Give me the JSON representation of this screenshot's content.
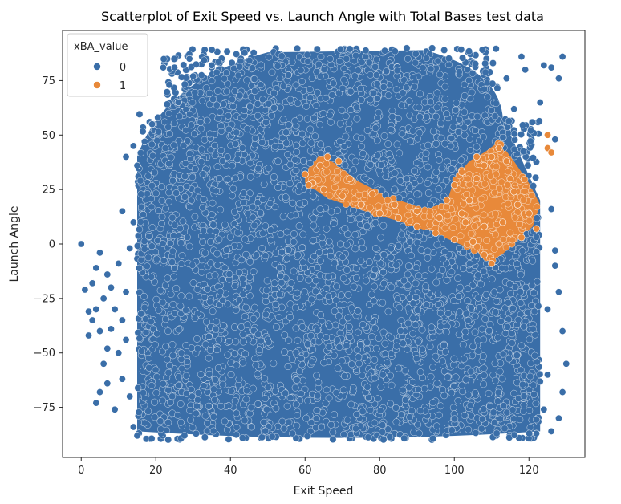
{
  "chart_data": {
    "type": "scatter",
    "title": "Scatterplot of Exit Speed vs. Launch Angle with Total Bases test data",
    "xlabel": "Exit Speed",
    "ylabel": "Launch Angle",
    "xlim": [
      -5,
      135
    ],
    "ylim": [
      -98,
      98
    ],
    "xticks": [
      0,
      20,
      40,
      60,
      80,
      100,
      120
    ],
    "yticks": [
      -75,
      -50,
      -25,
      0,
      25,
      50,
      75
    ],
    "grid": false,
    "legend": {
      "title": "xBA_value",
      "placement": "top-left",
      "entries": [
        {
          "label": "0",
          "color": "#3a6ea8"
        },
        {
          "label": "1",
          "color": "#e8893a"
        }
      ]
    },
    "series": [
      {
        "name": "0",
        "color": "#3a6ea8",
        "points": [
          [
            0,
            0
          ],
          [
            1,
            -21
          ],
          [
            2,
            -42
          ],
          [
            2,
            -31
          ],
          [
            3,
            -35
          ],
          [
            3,
            -18
          ],
          [
            4,
            -30
          ],
          [
            4,
            -11
          ],
          [
            4,
            -73
          ],
          [
            5,
            -40
          ],
          [
            5,
            -68
          ],
          [
            5,
            -4
          ],
          [
            6,
            -25
          ],
          [
            6,
            -55
          ],
          [
            7,
            -48
          ],
          [
            7,
            -64
          ],
          [
            7,
            -14
          ],
          [
            8,
            -39
          ],
          [
            8,
            -20
          ],
          [
            9,
            -76
          ],
          [
            9,
            -30
          ],
          [
            10,
            -50
          ],
          [
            10,
            -9
          ],
          [
            11,
            -62
          ],
          [
            11,
            -35
          ],
          [
            11,
            15
          ],
          [
            12,
            40
          ],
          [
            12,
            -44
          ],
          [
            12,
            -22
          ],
          [
            13,
            -70
          ],
          [
            13,
            -2
          ],
          [
            14,
            -84
          ],
          [
            15,
            -88
          ],
          [
            14,
            10
          ],
          [
            14,
            45
          ],
          [
            15,
            36
          ],
          [
            17,
            47
          ],
          [
            19,
            55
          ],
          [
            22,
            81
          ],
          [
            25,
            81
          ],
          [
            26,
            65
          ],
          [
            29,
            85
          ],
          [
            30,
            77
          ],
          [
            35,
            82
          ],
          [
            123,
            65
          ],
          [
            124,
            82
          ],
          [
            126,
            81
          ],
          [
            127,
            48
          ],
          [
            128,
            76
          ],
          [
            129,
            86
          ],
          [
            126,
            16
          ],
          [
            127,
            -3
          ],
          [
            128,
            -22
          ],
          [
            129,
            -40
          ],
          [
            130,
            -55
          ],
          [
            129,
            -68
          ],
          [
            128,
            -80
          ],
          [
            126,
            -86
          ],
          [
            124,
            -76
          ],
          [
            122,
            -87
          ],
          [
            125,
            -60
          ],
          [
            125,
            -30
          ],
          [
            127,
            -10
          ],
          [
            118,
            86
          ],
          [
            119,
            80
          ],
          [
            116,
            62
          ],
          [
            114,
            76
          ]
        ],
        "regions": [
          {
            "x_range": [
              15,
              123
            ],
            "y_range": [
              -90,
              90
            ],
            "note": "dense main cluster"
          }
        ]
      },
      {
        "name": "1",
        "color": "#e8893a",
        "points": [
          [
            125,
            50
          ],
          [
            125,
            44
          ],
          [
            126,
            42
          ],
          [
            122,
            7
          ],
          [
            120,
            14
          ],
          [
            118,
            3
          ],
          [
            112,
            0
          ],
          [
            110,
            -9
          ],
          [
            108,
            -5
          ],
          [
            105,
            1
          ],
          [
            100,
            2
          ],
          [
            95,
            5
          ],
          [
            90,
            8
          ],
          [
            85,
            12
          ],
          [
            80,
            14
          ],
          [
            75,
            18
          ],
          [
            70,
            22
          ],
          [
            65,
            25
          ],
          [
            62,
            28
          ],
          [
            60,
            32
          ],
          [
            61,
            27
          ],
          [
            64,
            36
          ],
          [
            66,
            40
          ],
          [
            69,
            38
          ],
          [
            72,
            30
          ],
          [
            78,
            23
          ],
          [
            84,
            18
          ],
          [
            90,
            15
          ],
          [
            96,
            12
          ],
          [
            102,
            14
          ],
          [
            104,
            20
          ],
          [
            106,
            30
          ],
          [
            108,
            36
          ],
          [
            110,
            40
          ],
          [
            112,
            44
          ],
          [
            114,
            38
          ],
          [
            115,
            30
          ],
          [
            116,
            24
          ],
          [
            117,
            18
          ],
          [
            113,
            10
          ],
          [
            108,
            8
          ],
          [
            103,
            10
          ],
          [
            98,
            20
          ],
          [
            100,
            27
          ],
          [
            102,
            33
          ],
          [
            106,
            40
          ]
        ],
        "regions": [
          {
            "poly": [
              [
                60,
                33
              ],
              [
                64,
                41
              ],
              [
                68,
                37
              ],
              [
                74,
                29
              ],
              [
                82,
                22
              ],
              [
                92,
                16
              ],
              [
                98,
                19
              ],
              [
                100,
                30
              ],
              [
                104,
                38
              ],
              [
                108,
                42
              ],
              [
                112,
                47
              ],
              [
                116,
                38
              ],
              [
                120,
                28
              ],
              [
                123,
                18
              ],
              [
                121,
                8
              ],
              [
                116,
                0
              ],
              [
                110,
                -9
              ],
              [
                104,
                -2
              ],
              [
                96,
                4
              ],
              [
                86,
                10
              ],
              [
                76,
                15
              ],
              [
                66,
                21
              ],
              [
                60,
                28
              ]
            ],
            "note": "dense region of value 1"
          }
        ]
      }
    ]
  }
}
